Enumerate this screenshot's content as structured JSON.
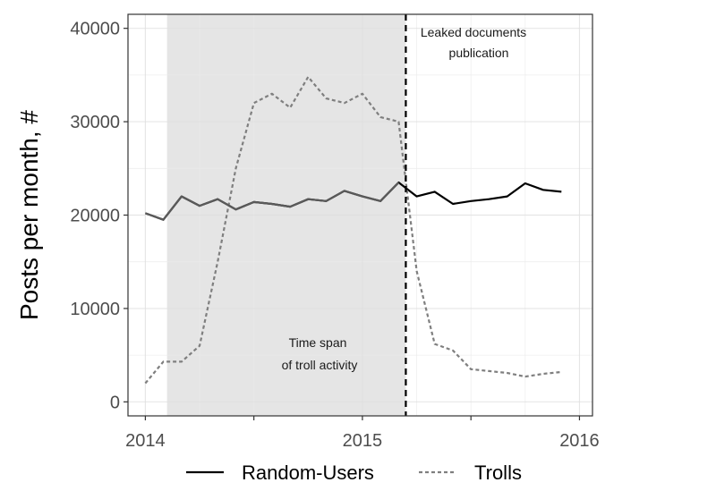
{
  "chart_data": {
    "type": "line",
    "title": "",
    "xlabel": "",
    "ylabel": "Posts per month, #",
    "xlim": [
      2013.92,
      2016.06
    ],
    "ylim": [
      -1500,
      41500
    ],
    "x_ticks": [
      2014,
      2015,
      2016
    ],
    "x_tick_labels": [
      "2014",
      "2015",
      "2016"
    ],
    "y_ticks": [
      0,
      10000,
      20000,
      30000,
      40000
    ],
    "y_tick_labels": [
      "0",
      "10000",
      "20000",
      "30000",
      "40000"
    ],
    "grid": true,
    "legend_position": "bottom",
    "series": [
      {
        "name": "Random-Users",
        "style": "solid",
        "color": "#000000",
        "x": [
          2014.0,
          2014.083,
          2014.167,
          2014.25,
          2014.333,
          2014.417,
          2014.5,
          2014.583,
          2014.667,
          2014.75,
          2014.833,
          2014.917,
          2015.0,
          2015.083,
          2015.167,
          2015.25,
          2015.333,
          2015.417,
          2015.5,
          2015.583,
          2015.667,
          2015.75,
          2015.833,
          2015.917
        ],
        "values": [
          20200,
          19500,
          22000,
          21000,
          21700,
          20600,
          21400,
          21200,
          20900,
          21700,
          21500,
          22600,
          22000,
          21500,
          23500,
          22000,
          22500,
          21200,
          21500,
          21700,
          22000,
          23400,
          22700,
          22500
        ]
      },
      {
        "name": "Trolls",
        "style": "dashed",
        "color": "#7f7f7f",
        "x": [
          2014.0,
          2014.083,
          2014.167,
          2014.25,
          2014.333,
          2014.417,
          2014.5,
          2014.583,
          2014.667,
          2014.75,
          2014.833,
          2014.917,
          2015.0,
          2015.083,
          2015.167,
          2015.25,
          2015.333,
          2015.417,
          2015.5,
          2015.583,
          2015.667,
          2015.75,
          2015.833,
          2015.917
        ],
        "values": [
          2000,
          4300,
          4300,
          6000,
          15000,
          25000,
          32000,
          33000,
          31500,
          34800,
          32500,
          32000,
          33000,
          30500,
          30000,
          14000,
          6200,
          5500,
          3500,
          3300,
          3100,
          2700,
          3000,
          3200
        ]
      }
    ],
    "shaded_region": {
      "x_start": 2014.1,
      "x_end": 2015.2,
      "color": "#e5e5e5"
    },
    "vline": {
      "x": 2015.2,
      "style": "dashed",
      "color": "#000000"
    },
    "annotations": {
      "leak_line1": "Leaked documents",
      "leak_line2": "publication",
      "troll_line1": "Time span",
      "troll_line2": "of troll activity"
    }
  }
}
